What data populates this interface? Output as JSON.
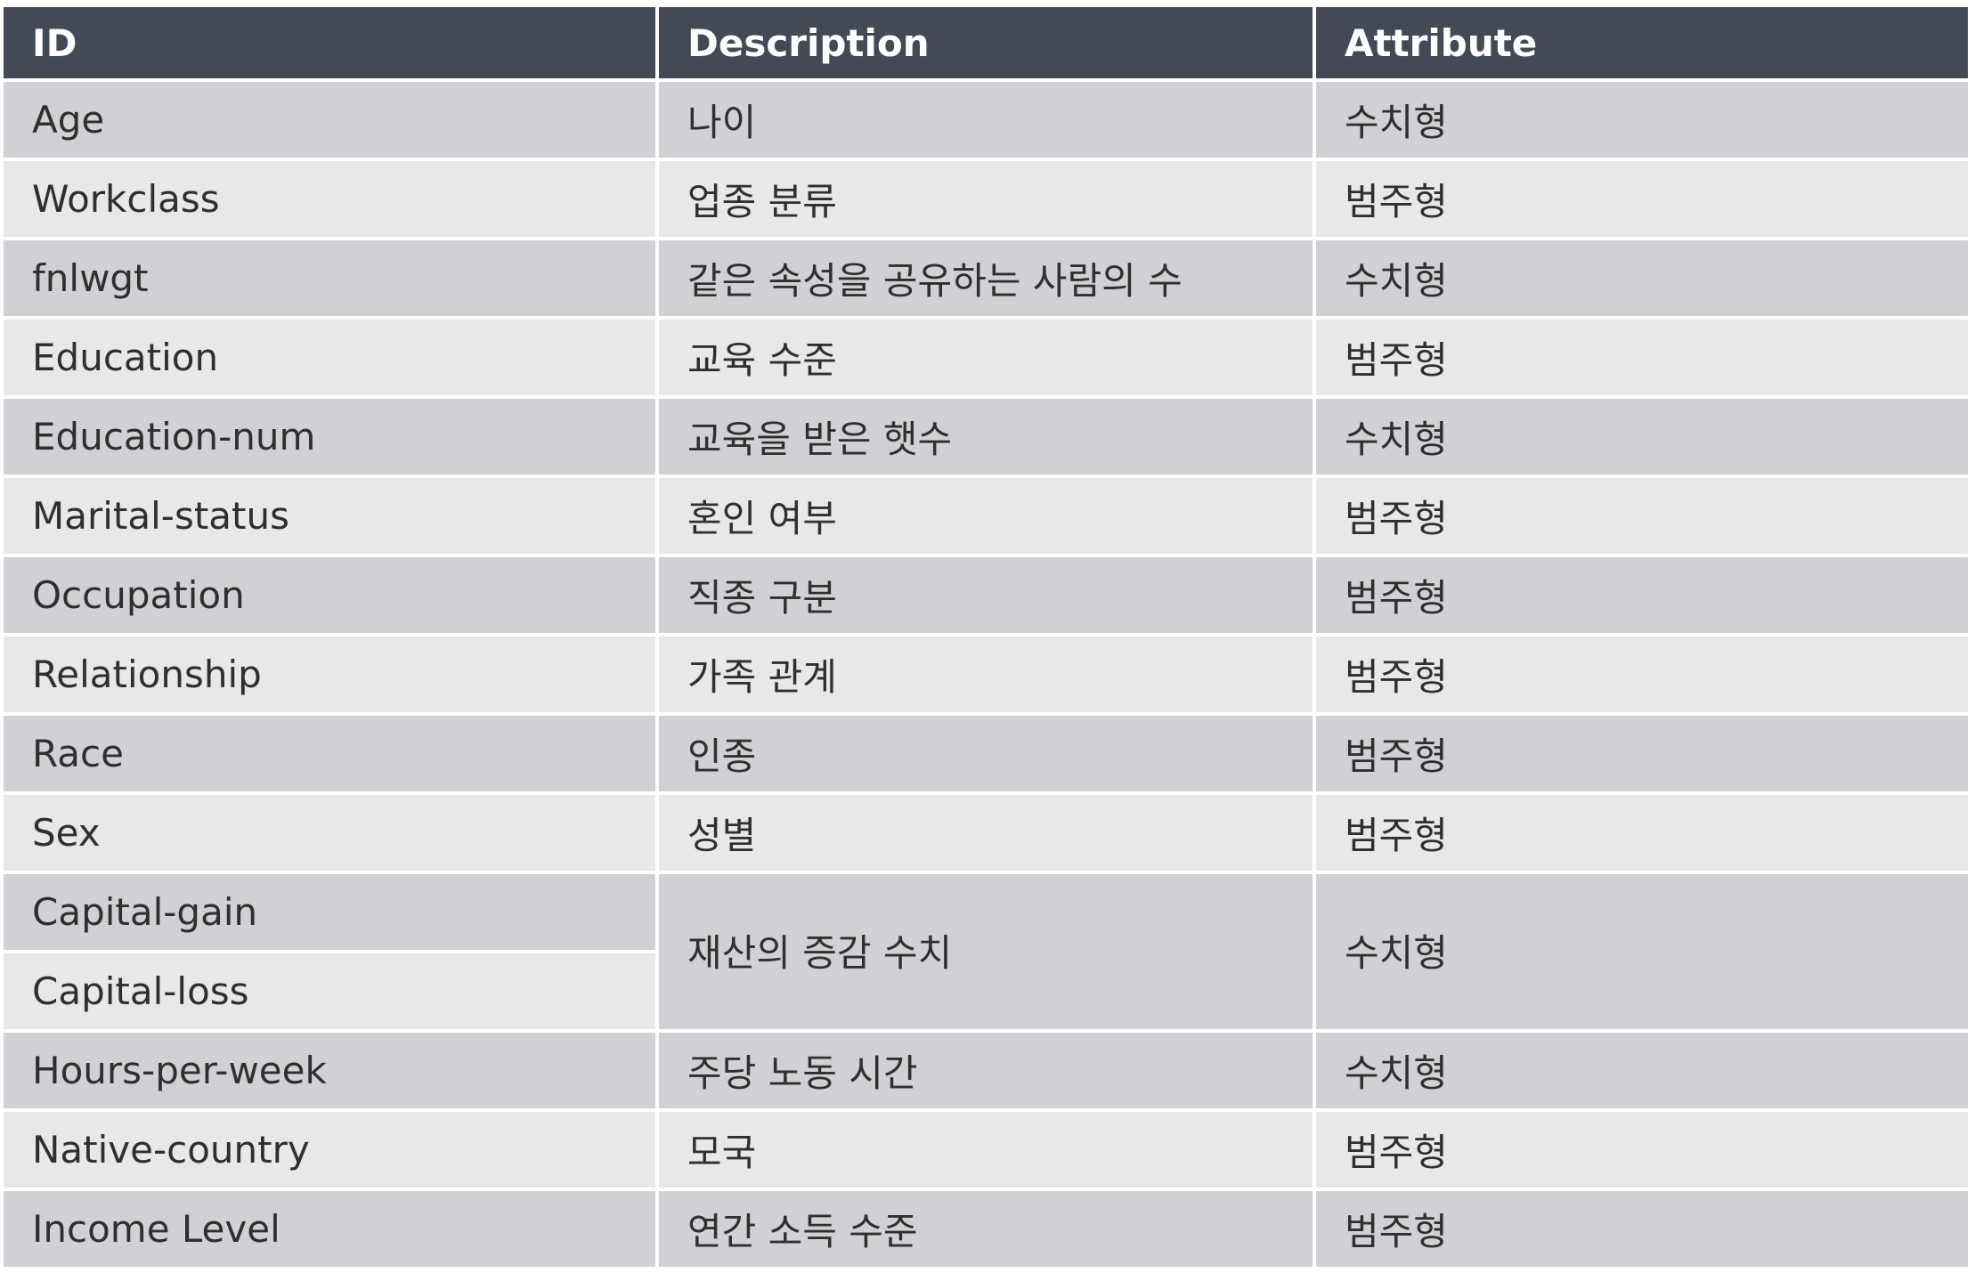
{
  "table": {
    "headers": [
      "ID",
      "Description",
      "Attribute"
    ],
    "rows": [
      {
        "id": "Age",
        "description": "나이",
        "attribute": "수치형"
      },
      {
        "id": "Workclass",
        "description": "업종 분류",
        "attribute": "범주형"
      },
      {
        "id": "fnlwgt",
        "description": "같은 속성을 공유하는 사람의 수",
        "attribute": "수치형"
      },
      {
        "id": "Education",
        "description": "교육 수준",
        "attribute": "범주형"
      },
      {
        "id": "Education-num",
        "description": "교육을 받은 햇수",
        "attribute": "수치형"
      },
      {
        "id": "Marital-status",
        "description": "혼인 여부",
        "attribute": "범주형"
      },
      {
        "id": "Occupation",
        "description": "직종 구분",
        "attribute": "범주형"
      },
      {
        "id": "Relationship",
        "description": "가족 관계",
        "attribute": "범주형"
      },
      {
        "id": "Race",
        "description": "인종",
        "attribute": "범주형"
      },
      {
        "id": "Sex",
        "description": "성별",
        "attribute": "범주형"
      },
      {
        "id": "Capital-gain",
        "description": "재산의 증감 수치",
        "attribute": "수치형"
      },
      {
        "id": "Capital-loss",
        "description": "",
        "attribute": ""
      },
      {
        "id": "Hours-per-week",
        "description": "주당 노동 시간",
        "attribute": "수치형"
      },
      {
        "id": "Native-country",
        "description": "모국",
        "attribute": "범주형"
      },
      {
        "id": "Income Level",
        "description": "연간 소득 수준",
        "attribute": "범주형"
      }
    ]
  },
  "colors": {
    "header_bg": "#434a56",
    "header_text": "#ffffff",
    "row_dark": "#d0d1d4",
    "row_light": "#e8e8e9",
    "body_text": "#2f2f2f"
  }
}
